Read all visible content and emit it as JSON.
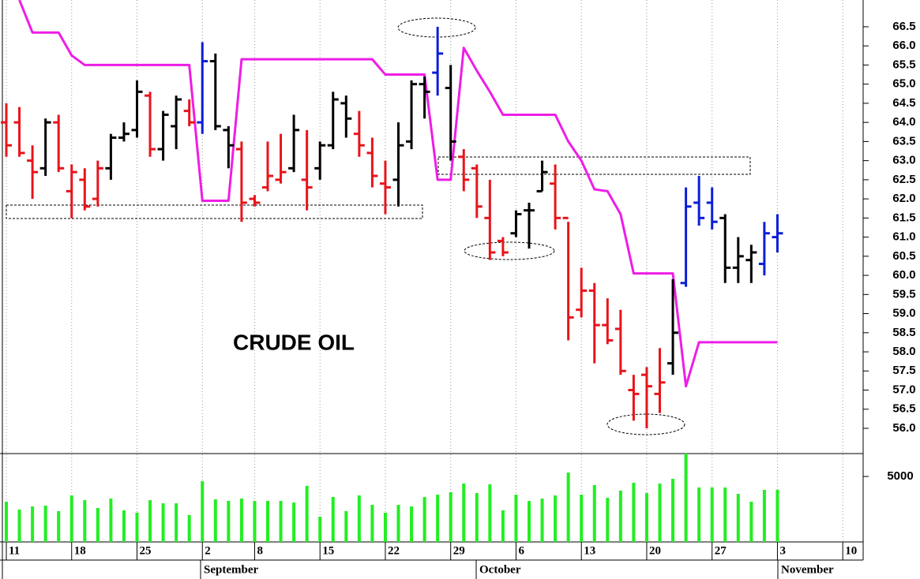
{
  "chart_data": {
    "type": "ohlc",
    "title": "CRUDE OIL",
    "categories": [
      "11",
      null,
      null,
      null,
      null,
      "18",
      null,
      null,
      null,
      null,
      "25",
      null,
      null,
      null,
      null,
      "2",
      null,
      null,
      null,
      "8",
      null,
      null,
      null,
      null,
      "15",
      null,
      null,
      null,
      null,
      "22",
      null,
      null,
      null,
      null,
      "29",
      null,
      null,
      null,
      null,
      "6",
      null,
      null,
      null,
      null,
      "13",
      null,
      null,
      null,
      null,
      "20",
      null,
      null,
      null,
      null,
      "27",
      null,
      null,
      null,
      null,
      "3",
      null,
      null,
      null,
      null,
      "10"
    ],
    "month_labels": [
      "September",
      "October",
      "November"
    ],
    "open": [
      64.0,
      64.0,
      63.0,
      62.8,
      64.0,
      62.2,
      62.5,
      62.0,
      62.8,
      63.6,
      63.8,
      64.7,
      63.3,
      63.9,
      64.3,
      64.0,
      65.6,
      63.8,
      63.3,
      62.0,
      62.3,
      62.5,
      62.8,
      62.5,
      62.8,
      63.4,
      64.5,
      63.7,
      63.2,
      62.4,
      62.5,
      63.5,
      65.0,
      65.3,
      64.9,
      63.1,
      62.8,
      61.5,
      60.9,
      61.1,
      61.7,
      62.2,
      62.4,
      61.5,
      59.1,
      59.6,
      58.7,
      58.6,
      57.0,
      57.4,
      56.9,
      57.7,
      59.8,
      61.9,
      61.9,
      61.5,
      60.2,
      60.4,
      60.3,
      61.0,
      null,
      null,
      null,
      null,
      null
    ],
    "high": [
      64.5,
      64.4,
      63.4,
      64.1,
      64.2,
      62.9,
      62.8,
      63.0,
      63.7,
      64.0,
      65.1,
      64.8,
      64.3,
      64.7,
      64.6,
      66.1,
      65.8,
      63.9,
      63.5,
      62.1,
      63.5,
      63.7,
      64.2,
      63.8,
      63.5,
      64.8,
      64.7,
      64.3,
      63.6,
      63.0,
      64.0,
      65.1,
      65.2,
      66.5,
      65.5,
      63.3,
      62.9,
      62.5,
      61.0,
      61.7,
      61.9,
      63.0,
      62.9,
      61.4,
      60.2,
      59.8,
      59.4,
      59.1,
      57.4,
      57.6,
      58.1,
      59.9,
      62.3,
      62.6,
      62.3,
      61.6,
      61.0,
      60.8,
      61.4,
      61.6,
      null,
      null,
      null,
      null,
      null
    ],
    "low": [
      63.1,
      63.1,
      62.0,
      62.6,
      62.7,
      61.5,
      61.7,
      61.8,
      62.5,
      63.5,
      63.6,
      63.1,
      63.0,
      63.3,
      63.9,
      63.7,
      63.8,
      62.8,
      61.4,
      61.8,
      62.2,
      62.4,
      62.7,
      61.7,
      62.5,
      63.3,
      63.6,
      63.1,
      62.3,
      61.6,
      61.8,
      63.3,
      64.1,
      64.7,
      63.0,
      62.2,
      61.5,
      60.4,
      60.5,
      61.0,
      60.7,
      62.2,
      61.2,
      58.3,
      58.9,
      57.7,
      58.2,
      57.4,
      56.2,
      56.0,
      56.4,
      57.4,
      59.7,
      61.3,
      61.2,
      59.8,
      59.8,
      59.8,
      60.0,
      60.6,
      null,
      null,
      null,
      null,
      null
    ],
    "close": [
      63.4,
      63.2,
      62.7,
      64.0,
      62.8,
      62.7,
      61.8,
      62.8,
      63.6,
      63.7,
      64.8,
      63.3,
      64.2,
      64.6,
      64.0,
      65.6,
      63.9,
      63.4,
      61.9,
      61.9,
      62.6,
      62.7,
      63.8,
      62.3,
      63.4,
      64.6,
      64.1,
      63.4,
      62.6,
      62.3,
      63.4,
      65.0,
      64.8,
      65.8,
      63.5,
      62.5,
      61.8,
      60.6,
      60.6,
      61.6,
      61.7,
      62.7,
      61.5,
      58.9,
      59.6,
      58.7,
      58.3,
      57.5,
      56.9,
      57.1,
      57.2,
      58.5,
      61.8,
      61.5,
      61.4,
      60.2,
      60.5,
      60.6,
      61.1,
      61.1,
      null,
      null,
      null,
      null,
      null
    ],
    "bar_colors": [
      "#e8141b",
      "#e8141b",
      "#e8141b",
      "#000000",
      "#e8141b",
      "#e8141b",
      "#e8141b",
      "#e8141b",
      "#000000",
      "#000000",
      "#000000",
      "#e8141b",
      "#000000",
      "#000000",
      "#e8141b",
      "#0a1fd6",
      "#000000",
      "#000000",
      "#e8141b",
      "#e8141b",
      "#e8141b",
      "#e8141b",
      "#000000",
      "#e8141b",
      "#000000",
      "#000000",
      "#000000",
      "#e8141b",
      "#e8141b",
      "#e8141b",
      "#000000",
      "#000000",
      "#000000",
      "#0a1fd6",
      "#000000",
      "#e8141b",
      "#e8141b",
      "#e8141b",
      "#e8141b",
      "#000000",
      "#000000",
      "#000000",
      "#e8141b",
      "#e8141b",
      "#e8141b",
      "#e8141b",
      "#e8141b",
      "#e8141b",
      "#e8141b",
      "#e8141b",
      "#e8141b",
      "#000000",
      "#0a1fd6",
      "#0a1fd6",
      "#0a1fd6",
      "#000000",
      "#000000",
      "#000000",
      "#0a1fd6",
      "#0a1fd6",
      null,
      null,
      null,
      null,
      null
    ],
    "stop_line": {
      "color": "#ee1de6",
      "values": [
        null,
        67.2,
        66.35,
        66.35,
        66.35,
        65.75,
        65.5,
        65.5,
        65.5,
        65.5,
        65.5,
        65.5,
        65.5,
        65.5,
        65.5,
        61.95,
        61.95,
        61.95,
        65.65,
        65.65,
        65.65,
        65.65,
        65.65,
        65.65,
        65.65,
        65.65,
        65.65,
        65.65,
        65.65,
        65.25,
        65.25,
        65.25,
        65.25,
        62.5,
        62.5,
        65.95,
        65.35,
        64.8,
        64.2,
        64.2,
        64.2,
        64.2,
        64.2,
        63.5,
        63.0,
        62.25,
        62.2,
        61.6,
        60.05,
        60.05,
        60.05,
        60.05,
        57.1,
        58.25,
        58.25,
        58.25,
        58.25,
        58.25,
        58.25,
        58.25,
        null,
        null,
        null,
        null,
        null
      ]
    },
    "ylim": [
      55.34,
      67.2
    ],
    "yticks": [
      {
        "value": 56,
        "label": "56.0"
      },
      56.5,
      {
        "value": 57,
        "label": "57.0"
      },
      57.5,
      {
        "value": 58,
        "label": "58.0"
      },
      58.5,
      {
        "value": 59,
        "label": "59.0"
      },
      59.5,
      {
        "value": 60,
        "label": "60.0"
      },
      60.5,
      {
        "value": 61,
        "label": "61.0"
      },
      61.5,
      {
        "value": 62,
        "label": "62.0"
      },
      62.5,
      {
        "value": 63,
        "label": "63.0"
      },
      63.5,
      {
        "value": 64,
        "label": "64.0"
      },
      64.5,
      {
        "value": 65,
        "label": "65.0"
      },
      65.5,
      {
        "value": 66,
        "label": "66.0"
      },
      66.5
    ],
    "volume": {
      "color": "#22ee22",
      "ylim": [
        0,
        6747
      ],
      "yticks": [
        5000
      ],
      "values": [
        3070,
        2470,
        2710,
        2770,
        2350,
        3550,
        3190,
        2590,
        3310,
        2410,
        2230,
        3190,
        2950,
        2950,
        2050,
        4640,
        3250,
        3130,
        3310,
        3130,
        3130,
        3130,
        3010,
        4280,
        1930,
        3430,
        2350,
        3550,
        2830,
        2230,
        2830,
        2710,
        3430,
        3610,
        3800,
        4460,
        3730,
        4400,
        2410,
        3610,
        3130,
        3310,
        3550,
        5300,
        3610,
        4340,
        3370,
        3920,
        4520,
        3730,
        4460,
        4820,
        6747,
        4160,
        4160,
        4160,
        3670,
        3070,
        3980,
        3980,
        null,
        null,
        null,
        null,
        null
      ]
    },
    "grid": true
  }
}
